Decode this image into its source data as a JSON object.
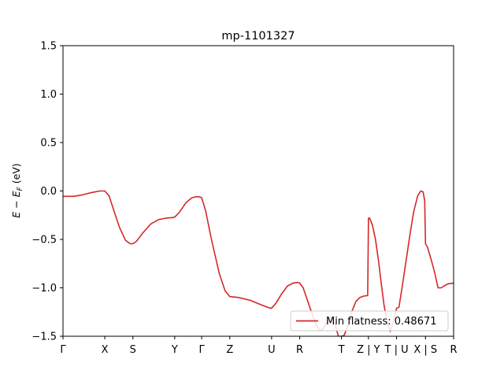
{
  "chart_data": {
    "type": "line",
    "title": "mp-1101327",
    "xlabel": "",
    "ylabel": "E − E_F (eV)",
    "ylabel_parts": {
      "main": "E − E",
      "sub": "F",
      "unit": " (eV)"
    },
    "ylim": [
      -1.5,
      1.5
    ],
    "yticks": [
      -1.5,
      -1.0,
      -0.5,
      0.0,
      0.5,
      1.0,
      1.5
    ],
    "ytick_labels": [
      "−1.5",
      "−1.0",
      "−0.5",
      "0.0",
      "0.5",
      "1.0",
      "1.5"
    ],
    "xlim": [
      0,
      100
    ],
    "xticks": [
      {
        "label": "Γ",
        "x": 0
      },
      {
        "label": "X",
        "x": 10.7
      },
      {
        "label": "S",
        "x": 17.9
      },
      {
        "label": "Y",
        "x": 28.6
      },
      {
        "label": "Γ",
        "x": 35.5
      },
      {
        "label": "Z",
        "x": 42.7
      },
      {
        "label": "U",
        "x": 53.4
      },
      {
        "label": "R",
        "x": 60.6
      },
      {
        "label": "T",
        "x": 71.3
      },
      {
        "label": "Z | Y",
        "x": 78.2
      },
      {
        "label": "T | U",
        "x": 85.4
      },
      {
        "label": "X | S",
        "x": 92.8
      },
      {
        "label": "R",
        "x": 100
      }
    ],
    "grid": false,
    "legend_position": "lower-right",
    "series": [
      {
        "name": "Min flatness: 0.48671",
        "color": "#d62728",
        "x": [
          0,
          2.8,
          5.0,
          7.5,
          9.5,
          10.7,
          11.8,
          13.0,
          14.5,
          16.0,
          17.2,
          17.9,
          18.8,
          20.5,
          22.5,
          24.5,
          26.5,
          28.0,
          28.6,
          29.8,
          31.5,
          33.0,
          34.0,
          35.0,
          35.5,
          36.5,
          38.0,
          40.0,
          41.5,
          42.7,
          45.0,
          48.0,
          51.0,
          53.0,
          53.4,
          54.5,
          56.0,
          57.5,
          59.0,
          60.0,
          60.6,
          61.5,
          63.0,
          64.5,
          65.5,
          66.5,
          67.5,
          68.5,
          69.5,
          70.5,
          71.3,
          72.0,
          73.0,
          74.0,
          75.0,
          76.0,
          77.0,
          78.0,
          78.2,
          78.5,
          79.2,
          80.0,
          80.8,
          81.5,
          82.2,
          83.0,
          83.8,
          84.5,
          85.4,
          86.0,
          86.8,
          87.8,
          88.8,
          89.8,
          90.8,
          91.6,
          92.2,
          92.6,
          92.8,
          92.8,
          93.3,
          94.2,
          95.2,
          96.0,
          96.8,
          97.6,
          98.5,
          100
        ],
        "y": [
          -0.055,
          -0.055,
          -0.04,
          -0.015,
          0.0,
          0.0,
          -0.05,
          -0.2,
          -0.38,
          -0.51,
          -0.545,
          -0.545,
          -0.52,
          -0.43,
          -0.34,
          -0.295,
          -0.28,
          -0.275,
          -0.27,
          -0.22,
          -0.12,
          -0.07,
          -0.06,
          -0.06,
          -0.07,
          -0.2,
          -0.5,
          -0.85,
          -1.03,
          -1.09,
          -1.1,
          -1.13,
          -1.18,
          -1.21,
          -1.21,
          -1.16,
          -1.06,
          -0.98,
          -0.95,
          -0.945,
          -0.95,
          -1.0,
          -1.18,
          -1.35,
          -1.44,
          -1.43,
          -1.36,
          -1.3,
          -1.36,
          -1.5,
          -1.5,
          -1.49,
          -1.38,
          -1.24,
          -1.14,
          -1.1,
          -1.085,
          -1.08,
          -0.28,
          -0.28,
          -0.35,
          -0.5,
          -0.73,
          -0.96,
          -1.18,
          -1.36,
          -1.45,
          -1.36,
          -1.21,
          -1.2,
          -1.0,
          -0.73,
          -0.46,
          -0.21,
          -0.05,
          0.0,
          -0.01,
          -0.1,
          -0.545,
          -0.545,
          -0.58,
          -0.7,
          -0.85,
          -1.0,
          -1.0,
          -0.98,
          -0.96,
          -0.95
        ]
      }
    ]
  }
}
